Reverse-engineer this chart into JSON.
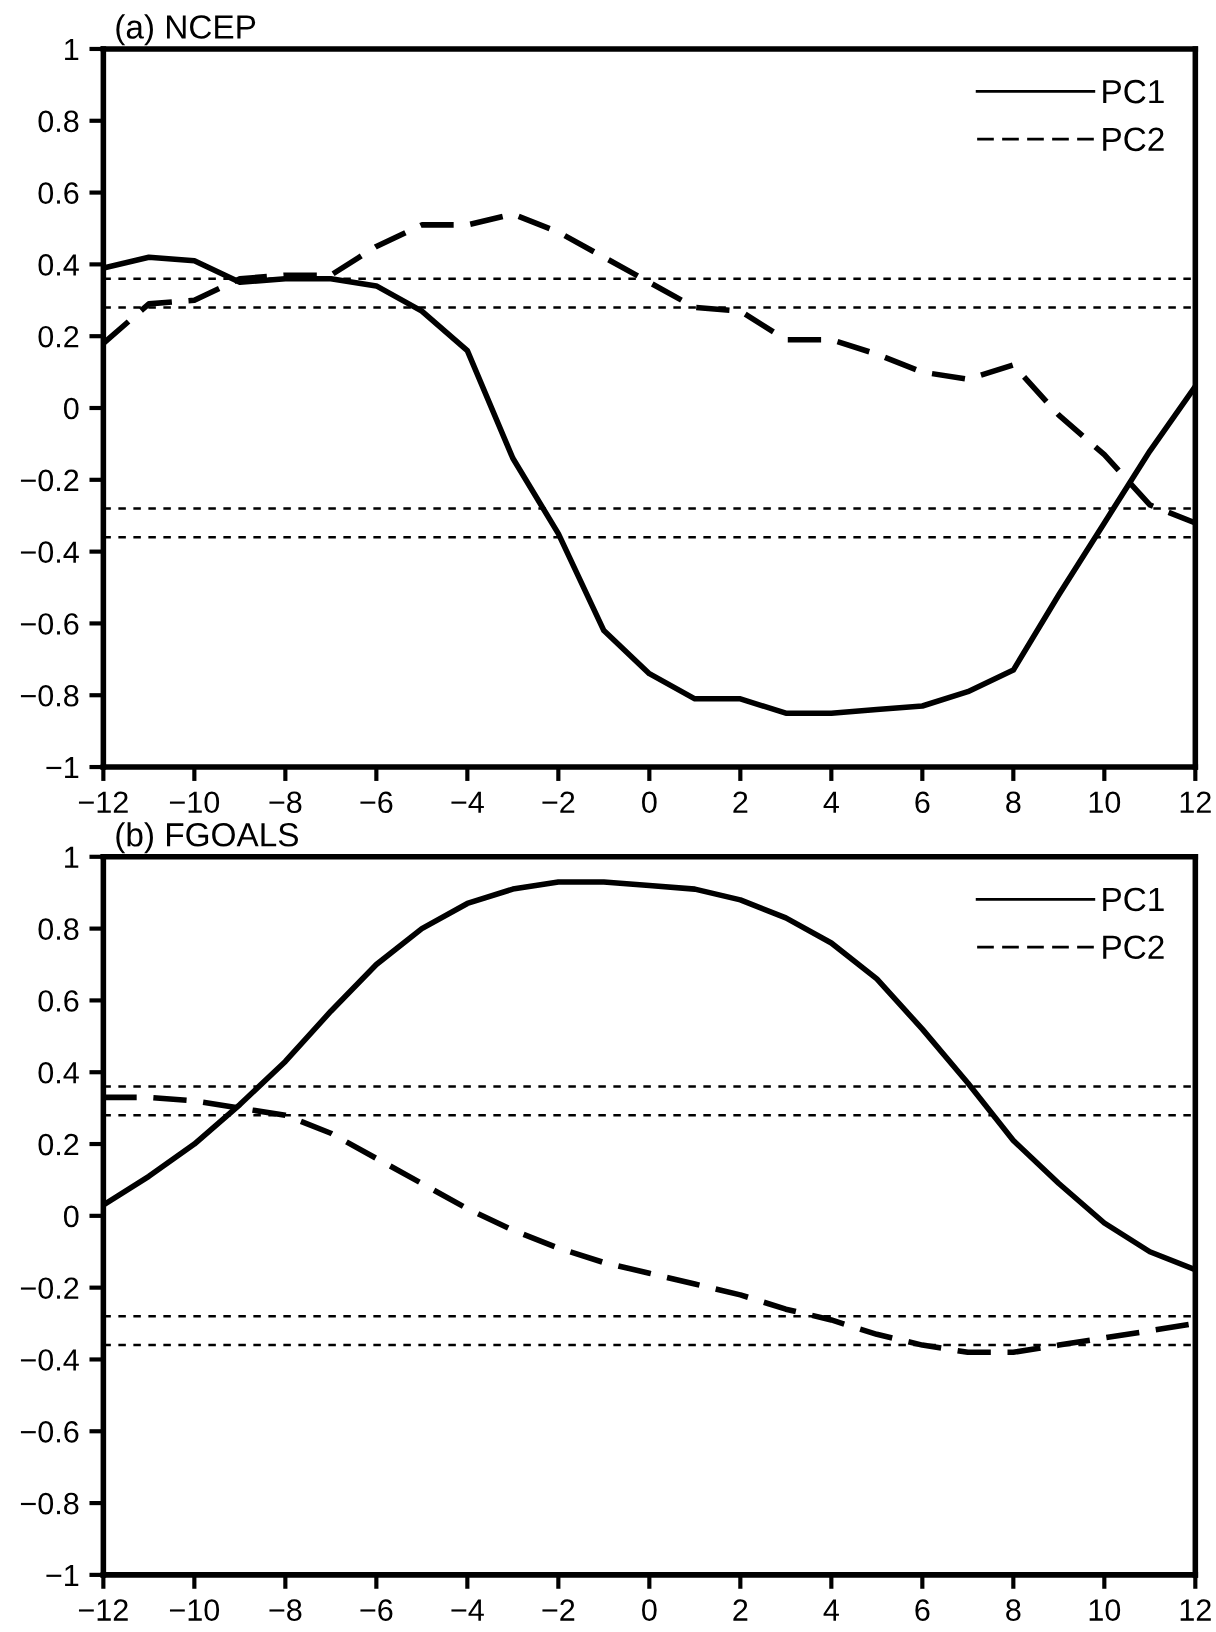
{
  "chart_data": [
    {
      "type": "line",
      "title": "(a) NCEP",
      "x": [
        -12,
        -11,
        -10,
        -9,
        -8,
        -7,
        -6,
        -5,
        -4,
        -3,
        -2,
        -1,
        0,
        1,
        2,
        3,
        4,
        5,
        6,
        7,
        8,
        9,
        10,
        11,
        12
      ],
      "series": [
        {
          "name": "PC1",
          "color": "#000000",
          "line_style": "solid",
          "values": [
            0.39,
            0.42,
            0.41,
            0.35,
            0.36,
            0.36,
            0.34,
            0.27,
            0.16,
            -0.14,
            -0.35,
            -0.62,
            -0.74,
            -0.81,
            -0.81,
            -0.85,
            -0.85,
            -0.84,
            -0.83,
            -0.79,
            -0.73,
            -0.52,
            -0.32,
            -0.12,
            0.06
          ]
        },
        {
          "name": "PC2",
          "color": "#000000",
          "line_style": "dashed",
          "values": [
            0.18,
            0.29,
            0.3,
            0.36,
            0.37,
            0.37,
            0.45,
            0.51,
            0.51,
            0.54,
            0.49,
            0.42,
            0.35,
            0.28,
            0.27,
            0.19,
            0.19,
            0.15,
            0.1,
            0.08,
            0.12,
            -0.02,
            -0.13,
            -0.27,
            -0.32
          ]
        }
      ],
      "xlim": [
        -12,
        12
      ],
      "xticks": [
        {
          "value": -12,
          "label": "−12"
        },
        {
          "value": -10,
          "label": "−10"
        },
        {
          "value": -8,
          "label": "−8"
        },
        {
          "value": -6,
          "label": "−6"
        },
        {
          "value": -4,
          "label": "−4"
        },
        {
          "value": -2,
          "label": "−2"
        },
        0,
        2,
        4,
        6,
        8,
        10,
        12
      ],
      "ylim": [
        -1,
        1
      ],
      "yticks": [
        {
          "value": -1,
          "label": "−1"
        },
        {
          "value": -0.8,
          "label": "−0.8"
        },
        {
          "value": -0.6,
          "label": "−0.6"
        },
        {
          "value": -0.4,
          "label": "−0.4"
        },
        {
          "value": -0.2,
          "label": "−0.2"
        },
        0,
        0.2,
        0.4,
        0.6,
        0.8,
        1
      ],
      "ref_lines": [
        {
          "axis": "y",
          "value": 0.36,
          "color": "#000000",
          "line_style": "dotted"
        },
        {
          "axis": "y",
          "value": 0.28,
          "color": "#000000",
          "line_style": "dotted"
        },
        {
          "axis": "y",
          "value": -0.28,
          "color": "#000000",
          "line_style": "dotted"
        },
        {
          "axis": "y",
          "value": -0.36,
          "color": "#000000",
          "line_style": "dotted"
        }
      ],
      "grid": false,
      "legend": "top right",
      "marker": "none"
    },
    {
      "type": "line",
      "title": "(b) FGOALS",
      "x": [
        -12,
        -11,
        -10,
        -9,
        -8,
        -7,
        -6,
        -5,
        -4,
        -3,
        -2,
        -1,
        0,
        1,
        2,
        3,
        4,
        5,
        6,
        7,
        8,
        9,
        10,
        11,
        12
      ],
      "series": [
        {
          "name": "PC1",
          "color": "#000000",
          "line_style": "solid",
          "values": [
            0.03,
            0.11,
            0.2,
            0.31,
            0.43,
            0.57,
            0.7,
            0.8,
            0.87,
            0.91,
            0.93,
            0.93,
            0.92,
            0.91,
            0.88,
            0.83,
            0.76,
            0.66,
            0.52,
            0.37,
            0.21,
            0.09,
            -0.02,
            -0.1,
            -0.15
          ]
        },
        {
          "name": "PC2",
          "color": "#000000",
          "line_style": "dashed",
          "values": [
            0.33,
            0.33,
            0.32,
            0.3,
            0.28,
            0.23,
            0.16,
            0.09,
            0.02,
            -0.04,
            -0.09,
            -0.13,
            -0.16,
            -0.19,
            -0.22,
            -0.26,
            -0.29,
            -0.33,
            -0.36,
            -0.38,
            -0.38,
            -0.36,
            -0.34,
            -0.32,
            -0.3
          ]
        }
      ],
      "xlim": [
        -12,
        12
      ],
      "xticks": [
        {
          "value": -12,
          "label": "−12"
        },
        {
          "value": -10,
          "label": "−10"
        },
        {
          "value": -8,
          "label": "−8"
        },
        {
          "value": -6,
          "label": "−6"
        },
        {
          "value": -4,
          "label": "−4"
        },
        {
          "value": -2,
          "label": "−2"
        },
        0,
        2,
        4,
        6,
        8,
        10,
        12
      ],
      "ylim": [
        -1,
        1
      ],
      "yticks": [
        {
          "value": -1,
          "label": "−1"
        },
        {
          "value": -0.8,
          "label": "−0.8"
        },
        {
          "value": -0.6,
          "label": "−0.6"
        },
        {
          "value": -0.4,
          "label": "−0.4"
        },
        {
          "value": -0.2,
          "label": "−0.2"
        },
        0,
        0.2,
        0.4,
        0.6,
        0.8,
        1
      ],
      "ref_lines": [
        {
          "axis": "y",
          "value": 0.36,
          "color": "#000000",
          "line_style": "dotted"
        },
        {
          "axis": "y",
          "value": 0.28,
          "color": "#000000",
          "line_style": "dotted"
        },
        {
          "axis": "y",
          "value": -0.28,
          "color": "#000000",
          "line_style": "dotted"
        },
        {
          "axis": "y",
          "value": -0.36,
          "color": "#000000",
          "line_style": "dotted"
        }
      ],
      "grid": false,
      "legend": "top right",
      "marker": "none"
    }
  ]
}
